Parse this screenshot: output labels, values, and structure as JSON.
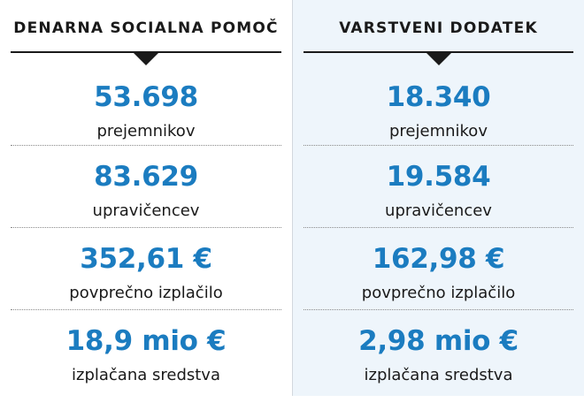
{
  "left": {
    "title": "DENARNA SOCIALNA POMOČ",
    "stats": [
      {
        "value": "53.698",
        "label": "prejemnikov"
      },
      {
        "value": "83.629",
        "label": "upravičencev"
      },
      {
        "value": "352,61 €",
        "label": "povprečno izplačilo"
      },
      {
        "value": "18,9 mio €",
        "label": "izplačana sredstva"
      }
    ]
  },
  "right": {
    "title": "VARSTVENI DODATEK",
    "stats": [
      {
        "value": "18.340",
        "label": "prejemnikov"
      },
      {
        "value": "19.584",
        "label": "upravičencev"
      },
      {
        "value": "162,98 €",
        "label": "povprečno izplačilo"
      },
      {
        "value": "2,98 mio €",
        "label": "izplačana sredstva"
      }
    ]
  },
  "colors": {
    "value_blue": "#1b7cc0",
    "right_panel_bg": "#eef5fb",
    "text_dark": "#1a1a1a"
  },
  "icons": {
    "header_marker": "triangle-down-icon"
  }
}
